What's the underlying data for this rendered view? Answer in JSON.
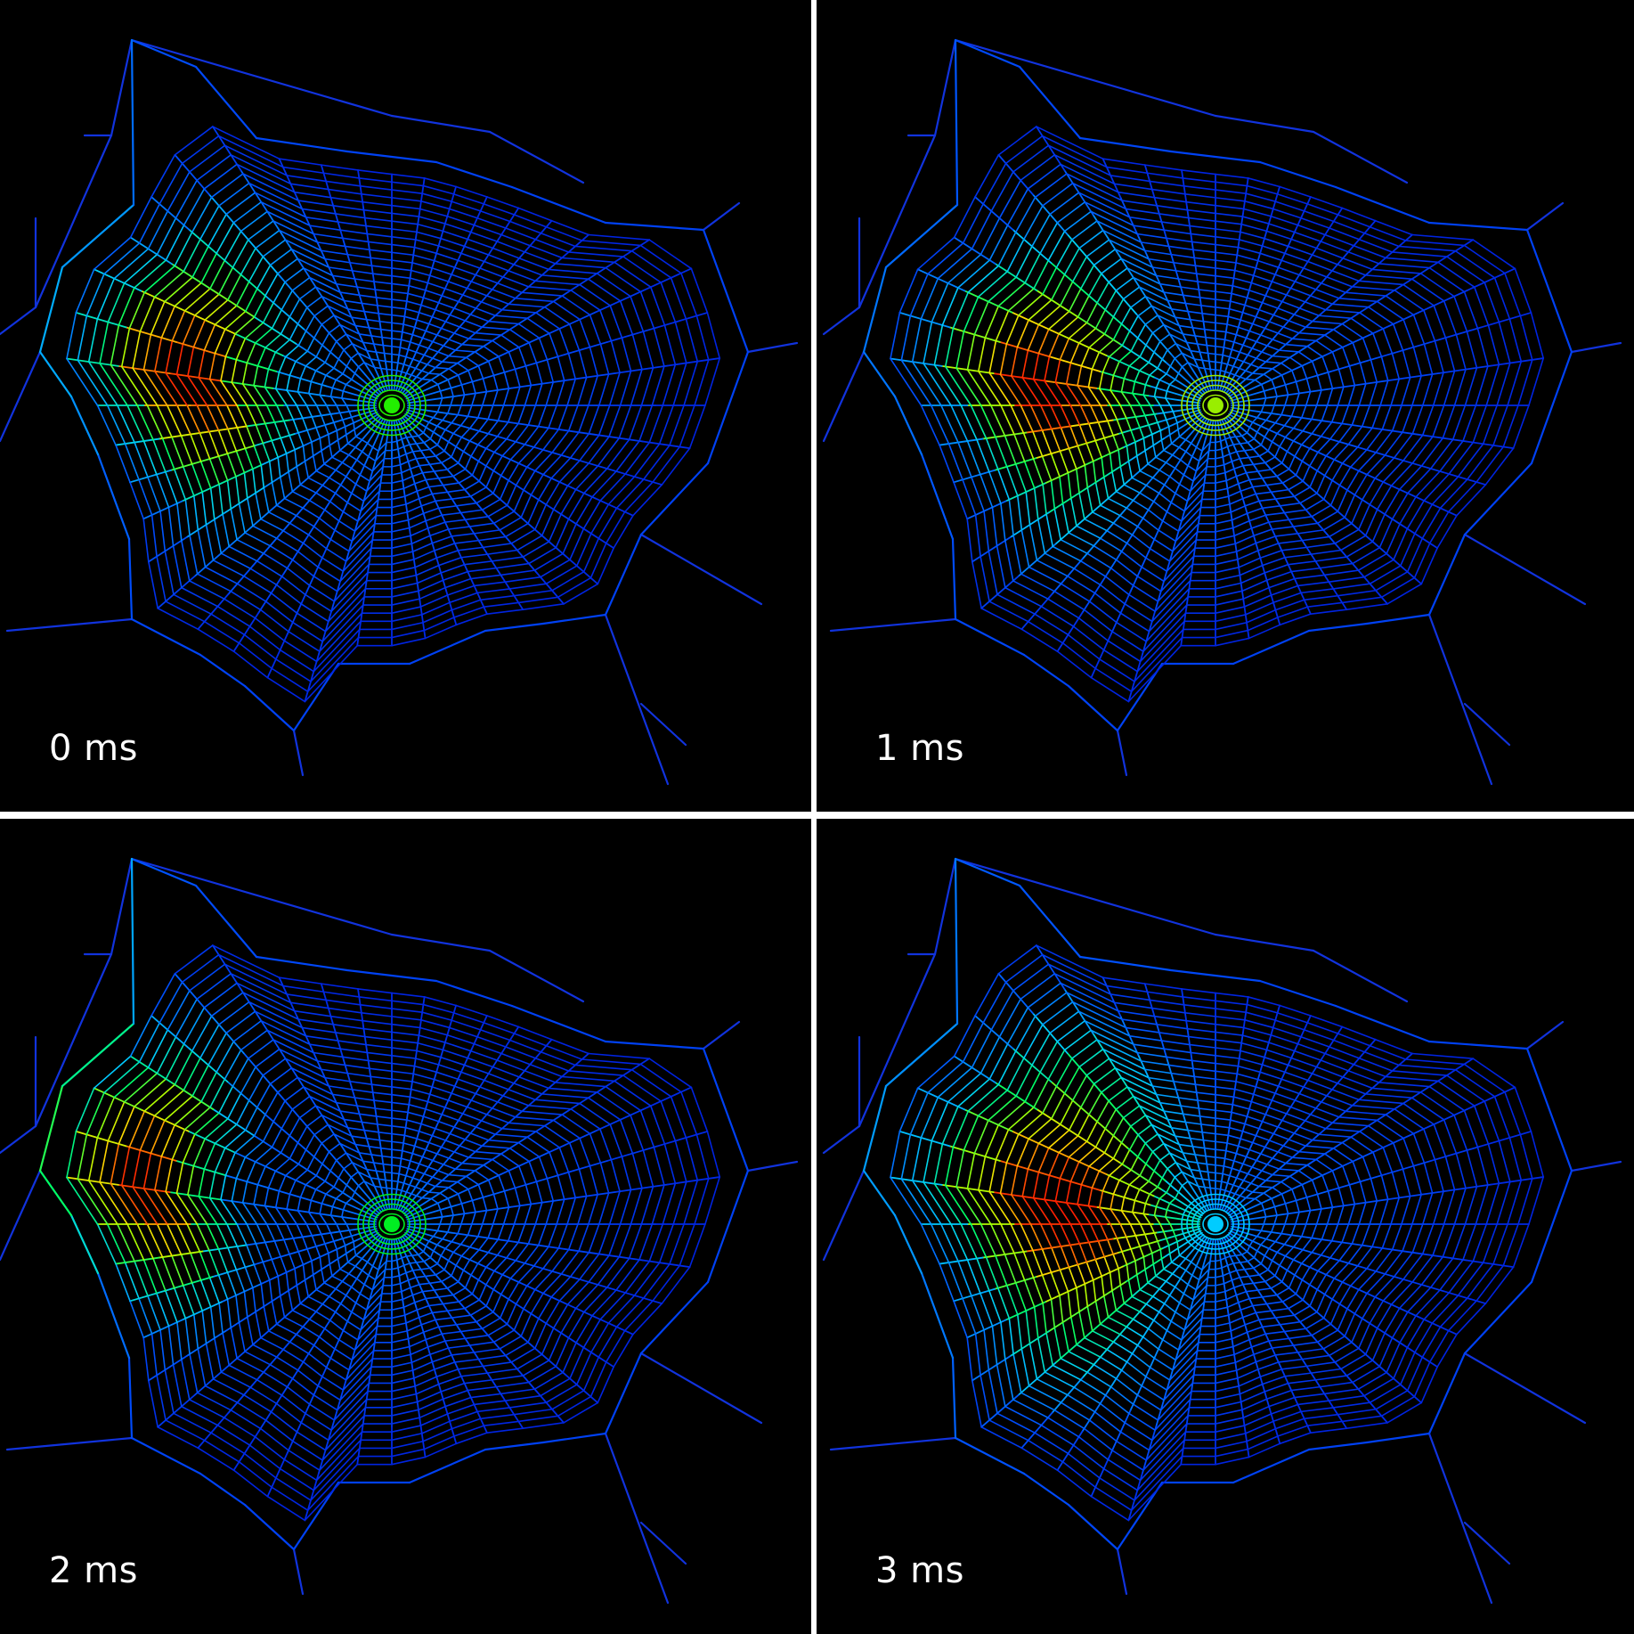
{
  "panels": [
    {
      "label": "0 ms",
      "hot_angle": 188,
      "hot_radius": 0.66,
      "hot_width": 0.55,
      "hub_color": "#22ee00"
    },
    {
      "label": "1 ms",
      "hot_angle": 185,
      "hot_radius": 0.55,
      "hot_width": 0.7,
      "hub_color": "#99ee00"
    },
    {
      "label": "2 ms",
      "hot_angle": 190,
      "hot_radius": 0.8,
      "hot_width": 0.4,
      "hub_color": "#00ee22"
    },
    {
      "label": "3 ms",
      "hot_angle": 185,
      "hot_radius": 0.5,
      "hot_width": 1.1,
      "hub_color": "#00ccff"
    }
  ],
  "colors": {
    "background": "#000000",
    "divider": "#ffffff",
    "colormap": [
      "#0000cc",
      "#0055ff",
      "#00ccff",
      "#00ff66",
      "#aaff00",
      "#ffdd00",
      "#ff3300",
      "#ff0000"
    ]
  }
}
